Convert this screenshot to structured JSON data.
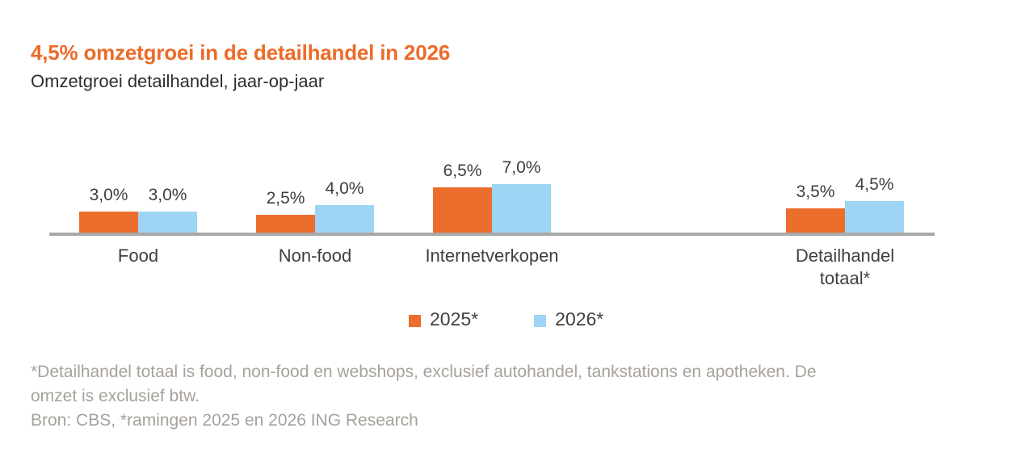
{
  "title": "4,5% omzetgroei in de detailhandel in 2026",
  "subtitle": "Omzetgroei detailhandel, jaar-op-jaar",
  "colors": {
    "title_orange": "#EC6B28",
    "series_orange": "#EC6E2D",
    "series_blue": "#9ED5F4",
    "axis_gray": "#A9A9A9",
    "label_dark": "#3F3F3F",
    "footnote_gray": "#A6A19B"
  },
  "chart_data": {
    "type": "bar",
    "title": "4,5% omzetgroei in de detailhandel in 2026",
    "subtitle": "Omzetgroei detailhandel, jaar-op-jaar",
    "categories": [
      "Food",
      "Non-food",
      "Internetverkopen",
      "Detailhandel\ntotaal*"
    ],
    "series": [
      {
        "name": "2025*",
        "color": "#EC6E2D",
        "values": [
          3.0,
          2.5,
          6.5,
          3.5
        ],
        "labels": [
          "3,0%",
          "2,5%",
          "6,5%",
          "3,5%"
        ]
      },
      {
        "name": "2026*",
        "color": "#9ED5F4",
        "values": [
          3.0,
          4.0,
          7.0,
          4.5
        ],
        "labels": [
          "3,0%",
          "4,0%",
          "7,0%",
          "4,5%"
        ]
      }
    ],
    "ylabel": "",
    "xlabel": "",
    "ylim": [
      0,
      8
    ],
    "grid": false,
    "y_axis_visible": false,
    "data_labels": true,
    "value_suffix": "%",
    "decimal_separator": ",",
    "legend_position": "bottom-center"
  },
  "footnote": {
    "lines": [
      "*Detailhandel totaal is food, non-food en webshops, exclusief autohandel, tankstations en apotheken. De",
      "omzet is exclusief btw.",
      "Bron: CBS, *ramingen 2025 en 2026 ING Research"
    ]
  }
}
